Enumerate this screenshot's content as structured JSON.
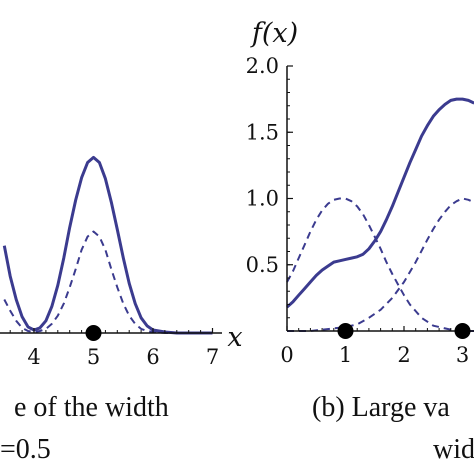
{
  "chart_data": [
    {
      "type": "line",
      "xlabel": "x",
      "ylabel": "",
      "xlim": [
        3.5,
        7
      ],
      "ylim": [
        0,
        2.0
      ],
      "x_ticks": [
        "4",
        "5",
        "6",
        "7"
      ],
      "y_ticks": [],
      "grid": false,
      "caption_lines": [
        "e of the width",
        "=0.5"
      ],
      "series": [
        {
          "style": "solid",
          "color": "#3b3b8f",
          "x": [
            3.5,
            3.6,
            3.7,
            3.8,
            3.9,
            4.0,
            4.1,
            4.2,
            4.3,
            4.4,
            4.5,
            4.6,
            4.7,
            4.8,
            4.9,
            5.0,
            5.1,
            5.2,
            5.3,
            5.4,
            5.5,
            5.6,
            5.7,
            5.8,
            5.9,
            6.0,
            6.2,
            6.4,
            6.6,
            6.8,
            7.0
          ],
          "y": [
            0.86,
            0.56,
            0.33,
            0.16,
            0.06,
            0.03,
            0.05,
            0.12,
            0.26,
            0.47,
            0.74,
            1.04,
            1.31,
            1.53,
            1.68,
            1.73,
            1.68,
            1.52,
            1.29,
            1.02,
            0.74,
            0.49,
            0.29,
            0.15,
            0.07,
            0.03,
            0.01,
            0.0,
            0.0,
            0.0,
            0.0
          ]
        },
        {
          "style": "dashed",
          "color": "#3b3b8f",
          "x": [
            3.5,
            3.6,
            3.7,
            3.8,
            3.9,
            4.0,
            4.1,
            4.2,
            4.3,
            4.4,
            4.5,
            4.6,
            4.7,
            4.8,
            4.9,
            5.0,
            5.1,
            5.2,
            5.3,
            5.4,
            5.5,
            5.6,
            5.7,
            5.8,
            5.9,
            6.0,
            6.2,
            6.4,
            6.6,
            6.8,
            7.0
          ],
          "y": [
            0.33,
            0.22,
            0.12,
            0.05,
            0.02,
            0.01,
            0.02,
            0.04,
            0.09,
            0.17,
            0.29,
            0.45,
            0.63,
            0.82,
            0.95,
            1.0,
            0.95,
            0.82,
            0.63,
            0.45,
            0.29,
            0.17,
            0.09,
            0.04,
            0.02,
            0.01,
            0.0,
            0.0,
            0.0,
            0.0,
            0.0
          ]
        }
      ],
      "markers": [
        5
      ]
    },
    {
      "type": "line",
      "ylabel": "f(x)",
      "xlabel": "",
      "xlim": [
        0,
        3.2
      ],
      "ylim": [
        0,
        2.0
      ],
      "x_ticks": [
        "0",
        "1",
        "2",
        "3"
      ],
      "y_ticks": [
        "0.5",
        "1.0",
        "1.5",
        "2.0"
      ],
      "grid": false,
      "caption_lines": [
        "(b) Large va",
        "wid"
      ],
      "series": [
        {
          "style": "solid",
          "color": "#3b3b8f",
          "x": [
            0.0,
            0.1,
            0.2,
            0.3,
            0.4,
            0.5,
            0.6,
            0.7,
            0.8,
            0.9,
            1.0,
            1.1,
            1.2,
            1.3,
            1.4,
            1.5,
            1.6,
            1.7,
            1.8,
            1.9,
            2.0,
            2.1,
            2.2,
            2.3,
            2.4,
            2.5,
            2.6,
            2.7,
            2.8,
            2.9,
            3.0,
            3.1,
            3.2
          ],
          "y": [
            0.18,
            0.22,
            0.27,
            0.32,
            0.37,
            0.42,
            0.46,
            0.49,
            0.52,
            0.53,
            0.54,
            0.55,
            0.56,
            0.58,
            0.62,
            0.68,
            0.75,
            0.84,
            0.94,
            1.05,
            1.16,
            1.27,
            1.37,
            1.47,
            1.55,
            1.62,
            1.67,
            1.71,
            1.74,
            1.75,
            1.75,
            1.74,
            1.72
          ]
        },
        {
          "style": "dashed",
          "color": "#3b3b8f",
          "x": [
            0.0,
            0.1,
            0.2,
            0.3,
            0.4,
            0.5,
            0.6,
            0.7,
            0.8,
            0.9,
            1.0,
            1.1,
            1.2,
            1.3,
            1.4,
            1.5,
            1.6,
            1.7,
            1.8,
            1.9,
            2.0,
            2.1,
            2.2,
            2.3,
            2.4,
            2.5,
            2.6,
            2.7,
            2.8,
            2.9,
            3.0,
            3.1,
            3.2
          ],
          "y": [
            0.37,
            0.45,
            0.55,
            0.65,
            0.75,
            0.84,
            0.91,
            0.96,
            0.99,
            1.0,
            1.0,
            0.98,
            0.94,
            0.88,
            0.8,
            0.71,
            0.62,
            0.52,
            0.43,
            0.35,
            0.27,
            0.2,
            0.15,
            0.1,
            0.07,
            0.04,
            0.03,
            0.02,
            0.01,
            0.0,
            0.0,
            0.0,
            0.0
          ]
        },
        {
          "style": "dashed",
          "color": "#3b3b8f",
          "x": [
            0.0,
            0.2,
            0.4,
            0.6,
            0.8,
            1.0,
            1.2,
            1.4,
            1.6,
            1.8,
            2.0,
            2.2,
            2.4,
            2.5,
            2.6,
            2.7,
            2.8,
            2.9,
            3.0,
            3.1,
            3.2
          ],
          "y": [
            0.0,
            0.0,
            0.0,
            0.01,
            0.02,
            0.03,
            0.05,
            0.1,
            0.16,
            0.25,
            0.37,
            0.52,
            0.69,
            0.77,
            0.84,
            0.9,
            0.95,
            0.98,
            1.0,
            0.99,
            0.97
          ]
        }
      ],
      "markers": [
        1,
        3
      ]
    }
  ]
}
